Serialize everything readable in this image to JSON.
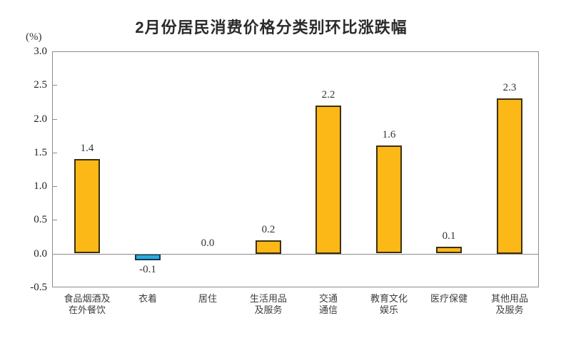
{
  "chart_data": {
    "type": "bar",
    "title": "2月份居民消费价格分类别环比涨跌幅",
    "ylabel": "(%)",
    "xlabel": "",
    "categories": [
      "食品烟酒及\n在外餐饮",
      "衣着",
      "居住",
      "生活用品\n及服务",
      "交通\n通信",
      "教育文化\n娱乐",
      "医疗保健",
      "其他用品\n及服务"
    ],
    "values": [
      1.4,
      -0.1,
      0.0,
      0.2,
      2.2,
      1.6,
      0.1,
      2.3
    ],
    "value_labels": [
      "1.4",
      "-0.1",
      "0.0",
      "0.2",
      "2.2",
      "1.6",
      "0.1",
      "2.3"
    ],
    "ylim": [
      -0.5,
      3.0
    ],
    "ytick_step": 0.5,
    "yticks": [
      "3.0",
      "2.5",
      "2.0",
      "1.5",
      "1.0",
      "0.5",
      "0.0",
      "-0.5"
    ],
    "grid": false,
    "legend": null,
    "colors": {
      "bar_positive": "#FBB817",
      "bar_positive_border": "#3D2F10",
      "bar_negative": "#29A9E0",
      "bar_negative_border": "#113A4E",
      "axis": "#8C8C8C",
      "text": "#333333"
    }
  }
}
